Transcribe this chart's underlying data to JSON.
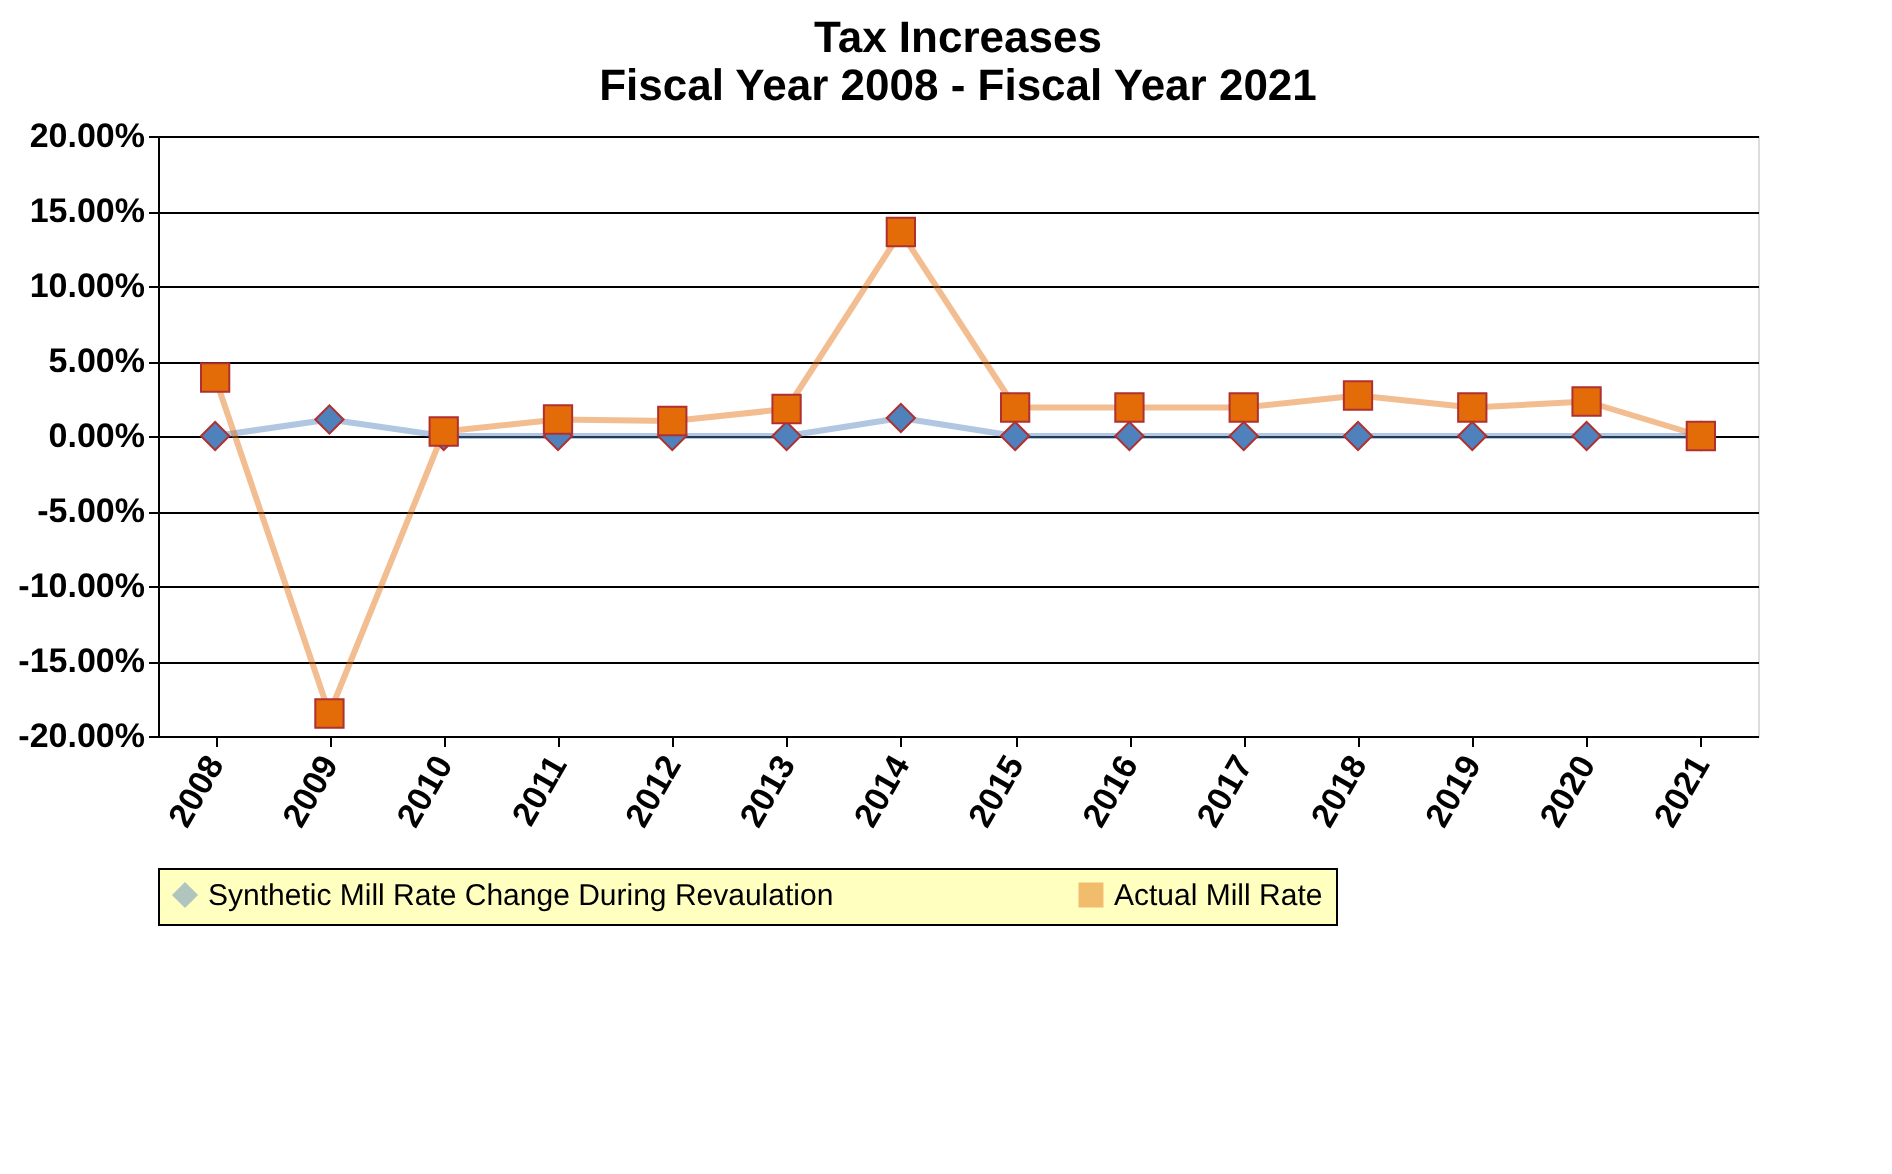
{
  "chart_data": {
    "type": "line",
    "title": "Tax Increases\nFiscal Year 2008 - Fiscal Year 2021",
    "categories": [
      "2008",
      "2009",
      "2010",
      "2011",
      "2012",
      "2013",
      "2014",
      "2015",
      "2016",
      "2017",
      "2018",
      "2019",
      "2020",
      "2021"
    ],
    "series": [
      {
        "name": "Synthetic Mill Rate Change During Revaulation",
        "color": "#4f81bd",
        "marker": "diamond",
        "values": [
          0,
          1.1,
          0,
          0,
          0,
          0,
          1.2,
          0,
          0,
          0,
          0,
          0,
          0,
          0
        ]
      },
      {
        "name": "Actual Mill Rate",
        "color": "#e36c09",
        "marker": "square",
        "values": [
          3.9,
          -18.5,
          0.3,
          1.1,
          1.0,
          1.8,
          13.6,
          1.9,
          1.9,
          1.9,
          2.7,
          1.9,
          2.3,
          0
        ]
      }
    ],
    "ylim": [
      -20,
      20
    ],
    "yticks": [
      {
        "value": -20,
        "label": "-20.00%"
      },
      {
        "value": -15,
        "label": "-15.00%"
      },
      {
        "value": -10,
        "label": "-10.00%"
      },
      {
        "value": -5,
        "label": "-5.00%"
      },
      {
        "value": 0,
        "label": "0.00%"
      },
      {
        "value": 5,
        "label": "5.00%"
      },
      {
        "value": 10,
        "label": "10.00%"
      },
      {
        "value": 15,
        "label": "15.00%"
      },
      {
        "value": 20,
        "label": "20.00%"
      }
    ],
    "grid": "y",
    "legend": "bottom",
    "line_style": "solid"
  }
}
